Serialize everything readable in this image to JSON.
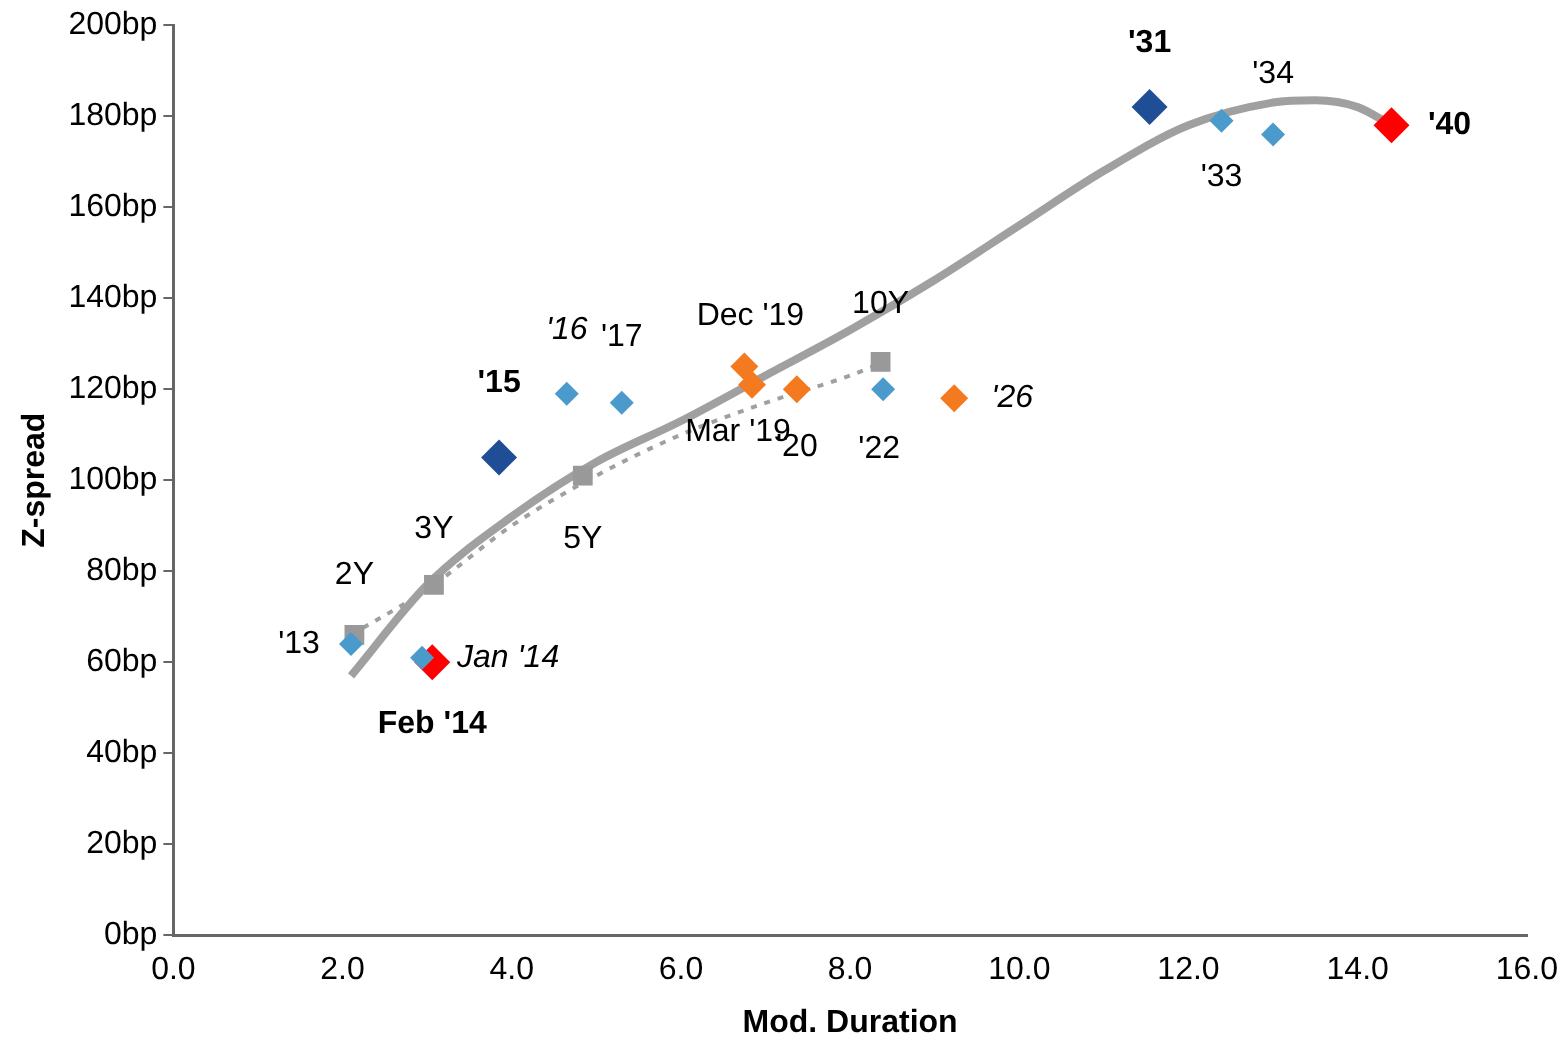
{
  "chart_data": {
    "type": "scatter",
    "xlabel": "Mod. Duration",
    "ylabel": "Z-spread",
    "xlim": [
      0,
      16
    ],
    "xticks": [
      {
        "value": 0,
        "label": "0.0"
      },
      {
        "value": 2,
        "label": "2.0"
      },
      {
        "value": 4,
        "label": "4.0"
      },
      {
        "value": 6,
        "label": "6.0"
      },
      {
        "value": 8,
        "label": "8.0"
      },
      {
        "value": 10,
        "label": "10.0"
      },
      {
        "value": 12,
        "label": "12.0"
      },
      {
        "value": 14,
        "label": "14.0"
      },
      {
        "value": 16,
        "label": "16.0"
      }
    ],
    "ylim": [
      0,
      200
    ],
    "yticks": [
      {
        "value": 0,
        "label": "0bp"
      },
      {
        "value": 20,
        "label": "20bp"
      },
      {
        "value": 40,
        "label": "40bp"
      },
      {
        "value": 60,
        "label": "60bp"
      },
      {
        "value": 80,
        "label": "80bp"
      },
      {
        "value": 100,
        "label": "100bp"
      },
      {
        "value": 120,
        "label": "120bp"
      },
      {
        "value": 140,
        "label": "140bp"
      },
      {
        "value": 160,
        "label": "160bp"
      },
      {
        "value": 180,
        "label": "180bp"
      },
      {
        "value": 200,
        "label": "200bp"
      }
    ],
    "grid": false,
    "legend": false,
    "series": [
      {
        "type": "line",
        "color": "#a0a0a0",
        "marker": "none",
        "line_style": "solid",
        "x": [
          2.1,
          3.0,
          4.0,
          5.0,
          6.0,
          7.0,
          8.0,
          9.0,
          10.0,
          11.0,
          12.0,
          13.0,
          13.5,
          14.0,
          14.4
        ],
        "values": [
          57,
          77,
          92,
          104,
          113,
          123,
          133,
          144,
          156,
          168,
          178,
          183,
          183.5,
          182,
          178
        ]
      },
      {
        "type": "line",
        "color": "#a0a0a0",
        "marker": "none",
        "line_style": "dotted",
        "x": [
          2.1,
          3.0,
          4.0,
          5.0,
          6.0,
          7.0,
          8.0,
          8.4
        ],
        "values": [
          66,
          76,
          90,
          101,
          110,
          117,
          123,
          126
        ]
      },
      {
        "color": "#4a9acb",
        "marker": "diamond",
        "x": [
          2.1,
          2.94,
          4.65,
          5.3,
          8.39,
          12.39,
          13.0
        ],
        "values": [
          64,
          61,
          119,
          117,
          120,
          179,
          176
        ]
      },
      {
        "color": "#f47a20",
        "marker": "diamond",
        "x": [
          6.75,
          6.84,
          7.37,
          9.23
        ],
        "values": [
          125,
          121,
          120,
          118
        ]
      },
      {
        "color": "#999999",
        "marker": "square",
        "x": [
          2.14,
          3.08,
          4.84,
          8.36
        ],
        "values": [
          66,
          77,
          101,
          126
        ]
      },
      {
        "color": "#1f4e96",
        "marker": "diamond",
        "x": [
          3.85,
          11.54
        ],
        "values": [
          105,
          182
        ]
      },
      {
        "color": "#ff0000",
        "marker": "diamond",
        "x": [
          3.06,
          14.4
        ],
        "values": [
          60,
          178
        ]
      }
    ],
    "annotations": [
      {
        "text": "'13",
        "x": 2.1,
        "y": 64
      },
      {
        "text": "Jan '14",
        "x": 2.94,
        "y": 61
      },
      {
        "text": "Feb '14",
        "x": 3.06,
        "y": 60
      },
      {
        "text": "2Y",
        "x": 2.14,
        "y": 66
      },
      {
        "text": "3Y",
        "x": 3.08,
        "y": 77
      },
      {
        "text": "'15",
        "x": 3.85,
        "y": 105
      },
      {
        "text": "5Y",
        "x": 4.84,
        "y": 101
      },
      {
        "text": "'16",
        "x": 4.65,
        "y": 119
      },
      {
        "text": "'17",
        "x": 5.3,
        "y": 117
      },
      {
        "text": "Dec '19",
        "x": 6.75,
        "y": 125
      },
      {
        "text": "Mar '19",
        "x": 6.84,
        "y": 121
      },
      {
        "text": "'20",
        "x": 7.37,
        "y": 120
      },
      {
        "text": "10Y",
        "x": 8.36,
        "y": 126
      },
      {
        "text": "'22",
        "x": 8.39,
        "y": 120
      },
      {
        "text": "'26",
        "x": 9.23,
        "y": 118
      },
      {
        "text": "'31",
        "x": 11.54,
        "y": 182
      },
      {
        "text": "'33",
        "x": 12.39,
        "y": 179
      },
      {
        "text": "'34",
        "x": 13.0,
        "y": 176
      },
      {
        "text": "'40",
        "x": 14.4,
        "y": 178
      }
    ]
  }
}
